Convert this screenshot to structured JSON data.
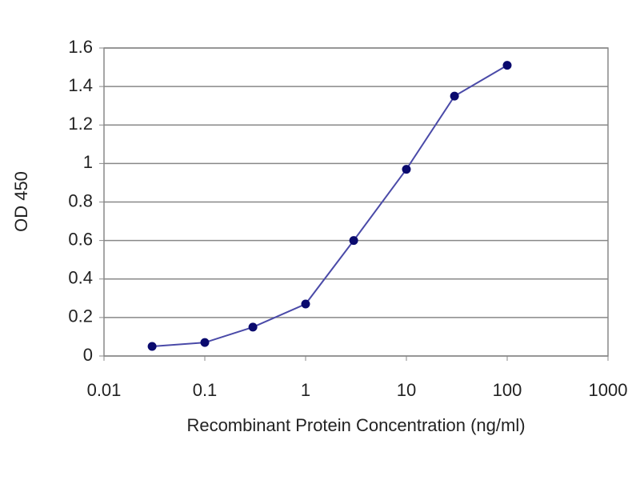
{
  "chart_data": {
    "type": "line",
    "x": [
      0.03,
      0.1,
      0.3,
      1,
      3,
      10,
      30,
      100
    ],
    "series": [
      {
        "color": "#4a4aa8",
        "marker_color": "#0a0a6e",
        "values": [
          0.05,
          0.07,
          0.15,
          0.27,
          0.6,
          0.97,
          1.35,
          1.51
        ]
      }
    ],
    "xlabel": "Recombinant Protein Concentration (ng/ml)",
    "ylabel": "OD 450",
    "xscale": "log",
    "xlim": [
      0.01,
      1000
    ],
    "xticks": [
      0.01,
      0.1,
      1,
      10,
      100,
      1000
    ],
    "ylim": [
      0,
      1.6
    ],
    "yticks": [
      0,
      0.2,
      0.4,
      0.6,
      0.8,
      1,
      1.2,
      1.4,
      1.6
    ],
    "grid": true
  }
}
